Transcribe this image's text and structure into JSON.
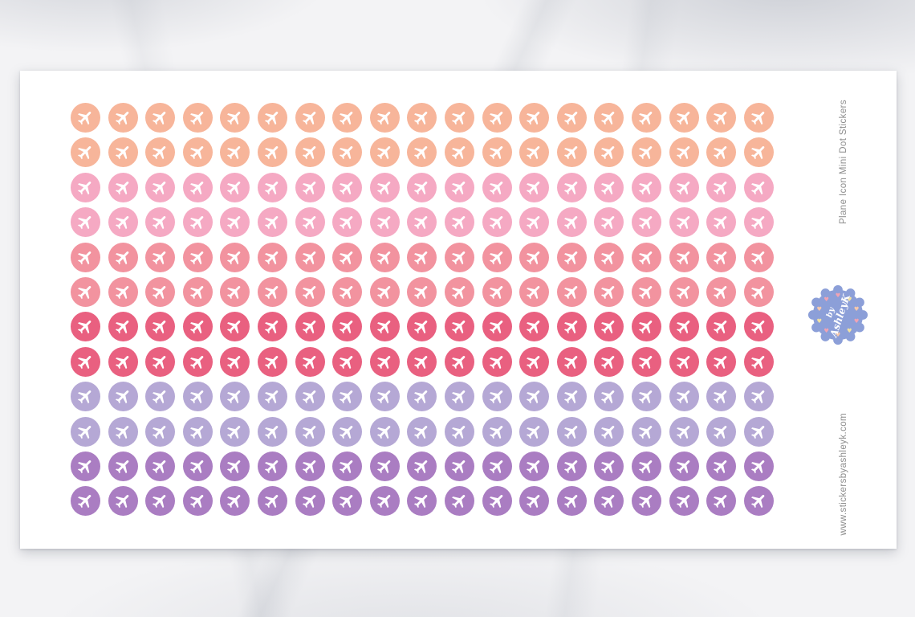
{
  "product": {
    "title": "Plane Icon Mini Dot Stickers",
    "website": "www.stickersbyashleyk.com"
  },
  "brand_badge": {
    "text_line1": "by",
    "text_line2": "AshleyK",
    "badge_color": "#8c9fd8",
    "text_color": "#ffffff",
    "heart_colors": [
      "#f0a3b4",
      "#f2e2a2",
      "#f6c8ab"
    ]
  },
  "sticker_sheet": {
    "icon": "plane-icon",
    "icon_color": "#ffffff",
    "columns": 19,
    "rows": [
      {
        "name": "peach-row-1",
        "color": "#f7b59a"
      },
      {
        "name": "peach-row-2",
        "color": "#f7b59a"
      },
      {
        "name": "pink-row-1",
        "color": "#f5a9c3"
      },
      {
        "name": "pink-row-2",
        "color": "#f5a9c3"
      },
      {
        "name": "salmon-row-1",
        "color": "#f2939f"
      },
      {
        "name": "salmon-row-2",
        "color": "#f2939f"
      },
      {
        "name": "raspberry-row-1",
        "color": "#e96080"
      },
      {
        "name": "raspberry-row-2",
        "color": "#e96080"
      },
      {
        "name": "lilac-row-1",
        "color": "#b5a8d5"
      },
      {
        "name": "lilac-row-2",
        "color": "#b5a8d5"
      },
      {
        "name": "purple-row-1",
        "color": "#aa7dc2"
      },
      {
        "name": "purple-row-2",
        "color": "#aa7dc2"
      }
    ]
  },
  "colors": {
    "sheet_background": "#ffffff",
    "side_text": "#8d8d8d"
  }
}
